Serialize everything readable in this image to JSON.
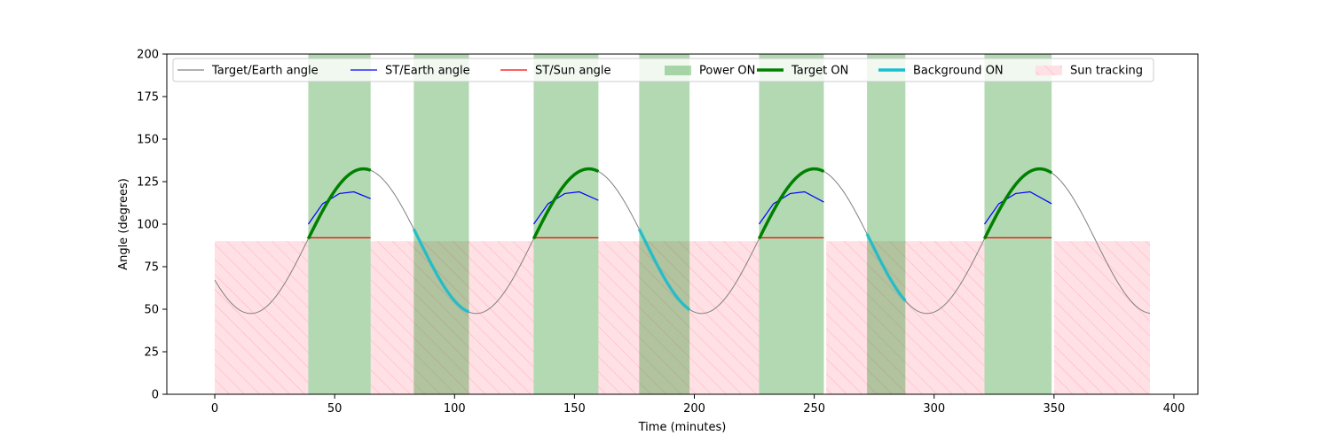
{
  "chart_data": {
    "type": "line",
    "title": "",
    "xlabel": "Time (minutes)",
    "ylabel": "Angle (degrees)",
    "xlim": [
      -20,
      410
    ],
    "ylim": [
      0,
      200
    ],
    "x_ticks": [
      0,
      50,
      100,
      150,
      200,
      250,
      300,
      350,
      400
    ],
    "y_ticks": [
      0,
      25,
      50,
      75,
      100,
      125,
      150,
      175,
      200
    ],
    "legend_position": "top",
    "legend": [
      {
        "key": "target_earth",
        "label": "Target/Earth angle",
        "kind": "line",
        "color": "#808080"
      },
      {
        "key": "st_earth",
        "label": "ST/Earth angle",
        "kind": "line",
        "color": "#0000ff"
      },
      {
        "key": "st_sun",
        "label": "ST/Sun angle",
        "kind": "line",
        "color": "#ff0000"
      },
      {
        "key": "power_on",
        "label": "Power ON",
        "kind": "patch",
        "color": "#008000"
      },
      {
        "key": "target_on",
        "label": "Target ON",
        "kind": "thick-line",
        "color": "#008000"
      },
      {
        "key": "background_on",
        "label": "Background ON",
        "kind": "thick-line",
        "color": "#17becf"
      },
      {
        "key": "sun_tracking",
        "label": "Sun tracking",
        "kind": "hatch",
        "color": "#ffb6c1"
      }
    ],
    "target_earth_curve": {
      "center": 90,
      "amplitude": 42.5,
      "period_minutes": 94,
      "min_at_minutes": 15,
      "x_range": [
        0,
        390
      ]
    },
    "power_on_intervals": [
      [
        39,
        65
      ],
      [
        83,
        106
      ],
      [
        133,
        160
      ],
      [
        177,
        198
      ],
      [
        227,
        254
      ],
      [
        272,
        288
      ],
      [
        321,
        349
      ]
    ],
    "target_on_intervals": [
      [
        39,
        65
      ],
      [
        133,
        160
      ],
      [
        227,
        254
      ],
      [
        321,
        349
      ]
    ],
    "background_on_intervals": [
      [
        83,
        106
      ],
      [
        177,
        198
      ],
      [
        272,
        288
      ]
    ],
    "sun_tracking_intervals": [
      [
        0,
        39
      ],
      [
        65,
        133
      ],
      [
        160,
        227
      ],
      [
        255,
        321
      ],
      [
        350,
        390
      ]
    ],
    "sun_tracking_level": 90,
    "st_earth_series": [
      {
        "x": [
          39,
          45,
          52,
          58,
          65
        ],
        "y": [
          100,
          112,
          118,
          119,
          115
        ]
      },
      {
        "x": [
          133,
          139,
          146,
          152,
          160
        ],
        "y": [
          100,
          112,
          118,
          119,
          114
        ]
      },
      {
        "x": [
          227,
          233,
          240,
          246,
          254
        ],
        "y": [
          100,
          112,
          118,
          119,
          113
        ]
      },
      {
        "x": [
          321,
          327,
          334,
          340,
          349
        ],
        "y": [
          100,
          112,
          118,
          119,
          112
        ]
      }
    ],
    "st_sun_series": [
      {
        "x": [
          39,
          65
        ],
        "y": [
          92,
          92
        ]
      },
      {
        "x": [
          133,
          160
        ],
        "y": [
          92,
          92
        ]
      },
      {
        "x": [
          227,
          254
        ],
        "y": [
          92,
          92
        ]
      },
      {
        "x": [
          321,
          349
        ],
        "y": [
          92,
          92
        ]
      }
    ],
    "colors": {
      "target_earth": "#808080",
      "st_earth": "#0000ff",
      "st_sun": "#ff0000",
      "power_on": "#008000",
      "target_on": "#008000",
      "background_on": "#17becf",
      "sun_tracking_fill": "#ffe0e4",
      "sun_tracking_hatch": "#ffb0bc"
    }
  }
}
